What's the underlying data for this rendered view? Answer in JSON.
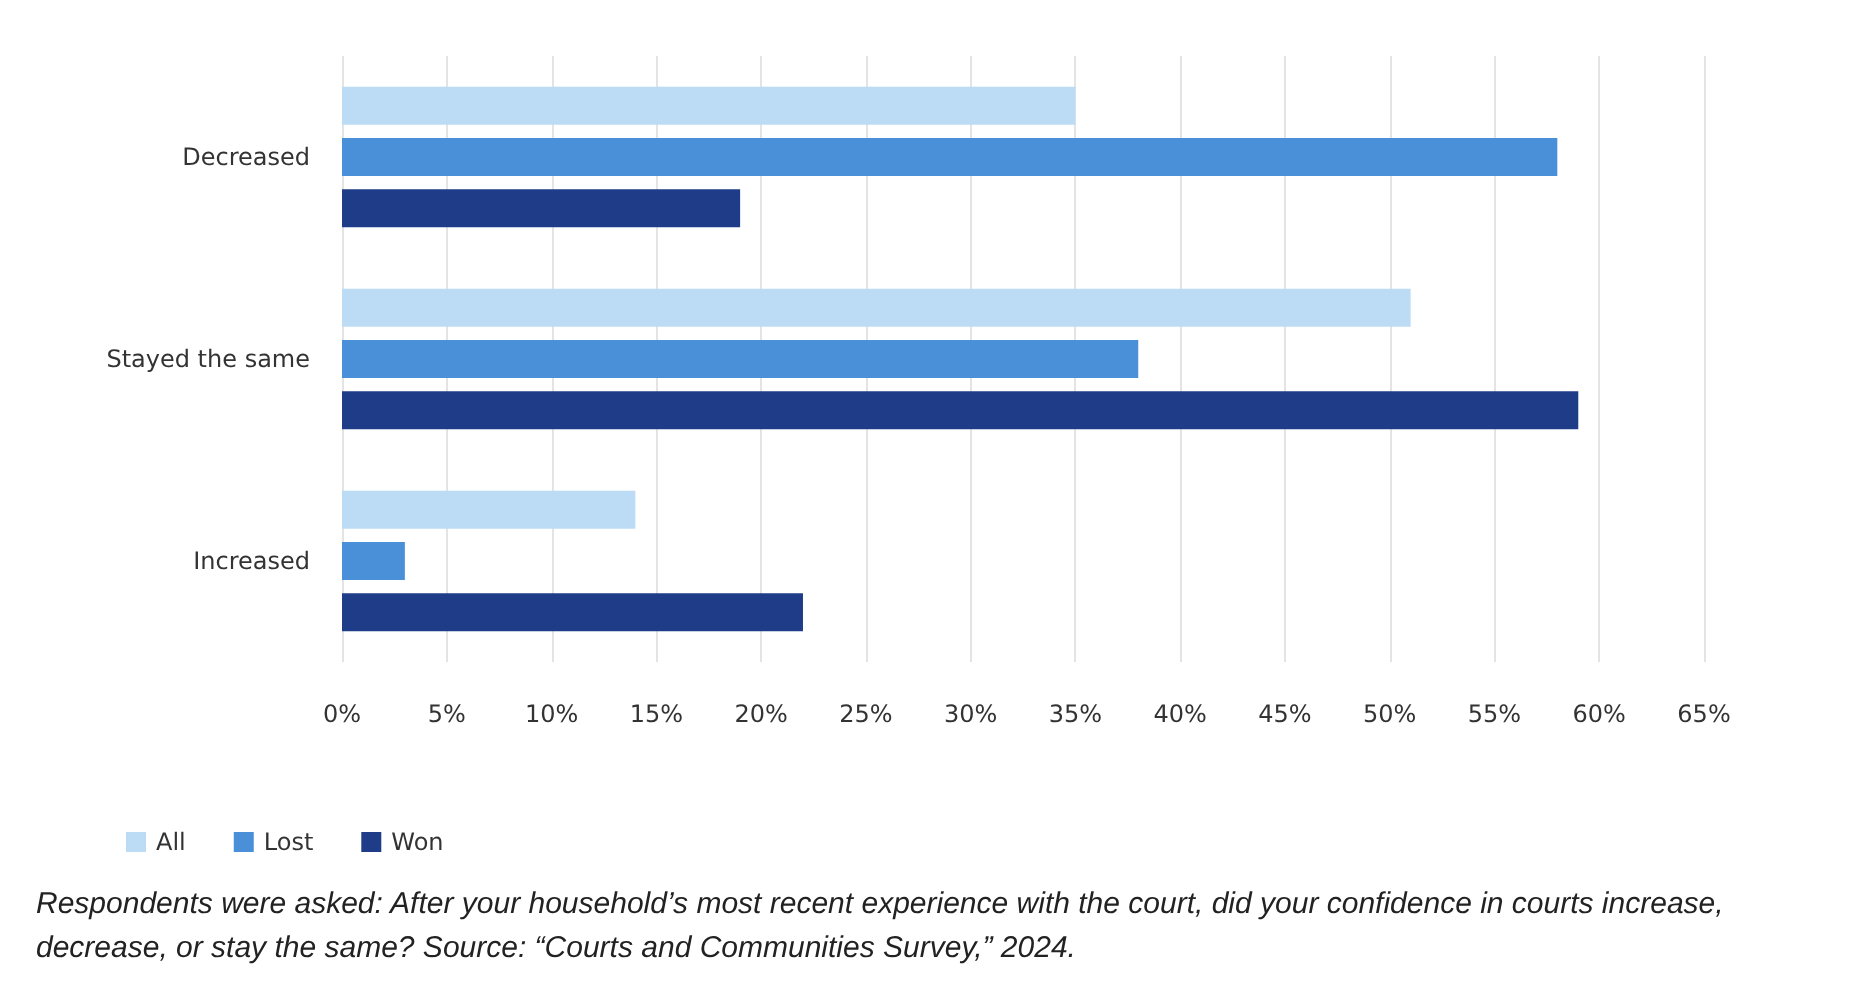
{
  "chart_data": {
    "type": "bar",
    "orientation": "horizontal",
    "categories": [
      "Decreased",
      "Stayed the same",
      "Increased"
    ],
    "series": [
      {
        "name": "All",
        "color": "#bcdcf5",
        "values": [
          35,
          51,
          14
        ]
      },
      {
        "name": "Lost",
        "color": "#4a90d9",
        "values": [
          58,
          38,
          3
        ]
      },
      {
        "name": "Won",
        "color": "#1f3c88",
        "values": [
          19,
          59,
          22
        ]
      }
    ],
    "xlim": [
      0,
      65
    ],
    "xticks": [
      {
        "value": 0,
        "label": "0%"
      },
      {
        "value": 5,
        "label": "5%"
      },
      {
        "value": 10,
        "label": "10%"
      },
      {
        "value": 15,
        "label": "15%"
      },
      {
        "value": 20,
        "label": "20%"
      },
      {
        "value": 25,
        "label": "25%"
      },
      {
        "value": 30,
        "label": "30%"
      },
      {
        "value": 35,
        "label": "35%"
      },
      {
        "value": 40,
        "label": "40%"
      },
      {
        "value": 45,
        "label": "45%"
      },
      {
        "value": 50,
        "label": "50%"
      },
      {
        "value": 55,
        "label": "55%"
      },
      {
        "value": 60,
        "label": "60%"
      },
      {
        "value": 65,
        "label": "65%"
      }
    ],
    "grid": "x",
    "legend": "bottom left",
    "annotations": [
      "Respondents were asked: After your household’s most recent experience with the court, did your confidence in courts increase, decrease, or stay the same? Source: “Courts and Communities Survey,” 2024."
    ]
  }
}
